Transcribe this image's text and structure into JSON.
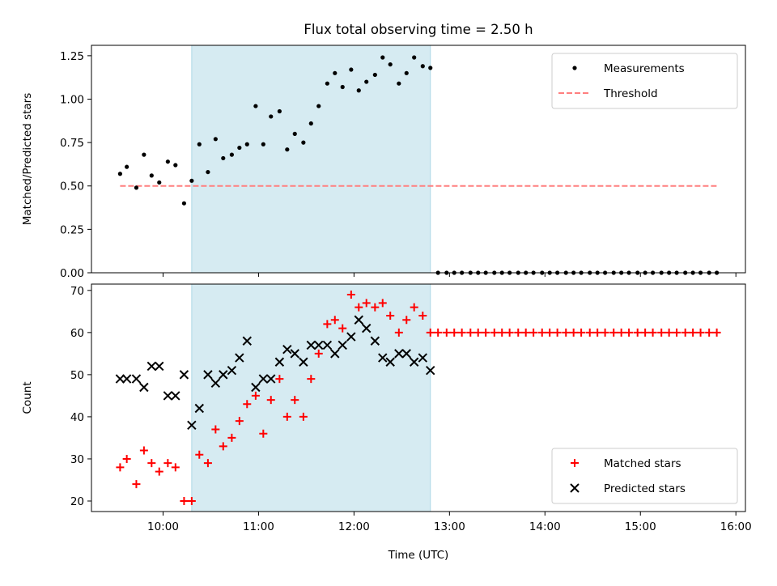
{
  "title": "Flux total observing time = 2.50 h",
  "colors": {
    "shade": "#add8e6",
    "measurement": "#000000",
    "threshold": "#ff7f7f",
    "matched": "#ff0000",
    "predicted": "#000000"
  },
  "chart_data": [
    {
      "type": "scatter",
      "panel": "top",
      "title": "Flux total observing time = 2.50 h",
      "xlabel": "",
      "ylabel": "Matched/Predicted stars",
      "xlim": [
        9.25,
        16.1
      ],
      "ylim": [
        0.0,
        1.31
      ],
      "yticks": [
        0.0,
        0.25,
        0.5,
        0.75,
        1.0,
        1.25
      ],
      "ytick_labels": [
        "0.00",
        "0.25",
        "0.50",
        "0.75",
        "1.00",
        "1.25"
      ],
      "xticks": [
        10,
        11,
        12,
        13,
        14,
        15,
        16
      ],
      "shaded_span": [
        10.3,
        12.8
      ],
      "legend": {
        "position": "top-right",
        "entries": [
          "Measurements",
          "Threshold"
        ]
      },
      "threshold": {
        "name": "Threshold",
        "y": 0.5,
        "x_start": 9.55,
        "x_end": 15.8
      },
      "series": [
        {
          "name": "Measurements",
          "x": [
            9.55,
            9.62,
            9.72,
            9.8,
            9.88,
            9.96,
            10.05,
            10.13,
            10.22,
            10.3,
            10.38,
            10.47,
            10.55,
            10.63,
            10.72,
            10.8,
            10.88,
            10.97,
            11.05,
            11.13,
            11.22,
            11.3,
            11.38,
            11.47,
            11.55,
            11.63,
            11.72,
            11.8,
            11.88,
            11.97,
            12.05,
            12.13,
            12.22,
            12.3,
            12.38,
            12.47,
            12.55,
            12.63,
            12.72,
            12.8,
            12.88,
            12.97,
            13.05,
            13.13,
            13.22,
            13.3,
            13.38,
            13.47,
            13.55,
            13.63,
            13.72,
            13.8,
            13.88,
            13.97,
            14.05,
            14.13,
            14.22,
            14.3,
            14.38,
            14.47,
            14.55,
            14.63,
            14.72,
            14.8,
            14.88,
            14.97,
            15.05,
            15.13,
            15.22,
            15.3,
            15.38,
            15.47,
            15.55,
            15.63,
            15.72,
            15.8
          ],
          "y": [
            0.57,
            0.61,
            0.49,
            0.68,
            0.56,
            0.52,
            0.64,
            0.62,
            0.4,
            0.53,
            0.74,
            0.58,
            0.77,
            0.66,
            0.68,
            0.72,
            0.74,
            0.96,
            0.74,
            0.9,
            0.93,
            0.71,
            0.8,
            0.75,
            0.86,
            0.96,
            1.09,
            1.15,
            1.07,
            1.17,
            1.05,
            1.1,
            1.14,
            1.24,
            1.2,
            1.09,
            1.15,
            1.24,
            1.19,
            1.18,
            0,
            0,
            0,
            0,
            0,
            0,
            0,
            0,
            0,
            0,
            0,
            0,
            0,
            0,
            0,
            0,
            0,
            0,
            0,
            0,
            0,
            0,
            0,
            0,
            0,
            0,
            0,
            0,
            0,
            0,
            0,
            0,
            0,
            0,
            0,
            0
          ]
        }
      ]
    },
    {
      "type": "scatter",
      "panel": "bottom",
      "xlabel": "Time (UTC)",
      "ylabel": "Count",
      "xlim": [
        9.25,
        16.1
      ],
      "ylim": [
        17.5,
        71.5
      ],
      "yticks": [
        20,
        30,
        40,
        50,
        60,
        70
      ],
      "ytick_labels": [
        "20",
        "30",
        "40",
        "50",
        "60",
        "70"
      ],
      "xticks": [
        10,
        11,
        12,
        13,
        14,
        15,
        16
      ],
      "xtick_labels": [
        "10:00",
        "11:00",
        "12:00",
        "13:00",
        "14:00",
        "15:00",
        "16:00"
      ],
      "shaded_span": [
        10.3,
        12.8
      ],
      "legend": {
        "position": "bottom-right",
        "entries": [
          "Matched stars",
          "Predicted stars"
        ]
      },
      "series": [
        {
          "name": "Matched stars",
          "marker": "+",
          "x": [
            9.55,
            9.62,
            9.72,
            9.8,
            9.88,
            9.96,
            10.05,
            10.13,
            10.22,
            10.3,
            10.38,
            10.47,
            10.55,
            10.63,
            10.72,
            10.8,
            10.88,
            10.97,
            11.05,
            11.13,
            11.22,
            11.3,
            11.38,
            11.47,
            11.55,
            11.63,
            11.72,
            11.8,
            11.88,
            11.97,
            12.05,
            12.13,
            12.22,
            12.3,
            12.38,
            12.47,
            12.55,
            12.63,
            12.72,
            12.8,
            12.88,
            12.97,
            13.05,
            13.13,
            13.22,
            13.3,
            13.38,
            13.47,
            13.55,
            13.63,
            13.72,
            13.8,
            13.88,
            13.97,
            14.05,
            14.13,
            14.22,
            14.3,
            14.38,
            14.47,
            14.55,
            14.63,
            14.72,
            14.8,
            14.88,
            14.97,
            15.05,
            15.13,
            15.22,
            15.3,
            15.38,
            15.47,
            15.55,
            15.63,
            15.72,
            15.8
          ],
          "y": [
            28,
            30,
            24,
            32,
            29,
            27,
            29,
            28,
            20,
            20,
            31,
            29,
            37,
            33,
            35,
            39,
            43,
            45,
            36,
            44,
            49,
            40,
            44,
            40,
            49,
            55,
            62,
            63,
            61,
            69,
            66,
            67,
            66,
            67,
            64,
            60,
            63,
            66,
            64,
            60,
            60,
            60,
            60,
            60,
            60,
            60,
            60,
            60,
            60,
            60,
            60,
            60,
            60,
            60,
            60,
            60,
            60,
            60,
            60,
            60,
            60,
            60,
            60,
            60,
            60,
            60,
            60,
            60,
            60,
            60,
            60,
            60,
            60,
            60,
            60,
            60
          ]
        },
        {
          "name": "Predicted stars",
          "marker": "x",
          "x": [
            9.55,
            9.62,
            9.72,
            9.8,
            9.88,
            9.96,
            10.05,
            10.13,
            10.22,
            10.3,
            10.38,
            10.47,
            10.55,
            10.63,
            10.72,
            10.8,
            10.88,
            10.97,
            11.05,
            11.13,
            11.22,
            11.3,
            11.38,
            11.47,
            11.55,
            11.63,
            11.72,
            11.8,
            11.88,
            11.97,
            12.05,
            12.13,
            12.22,
            12.3,
            12.38,
            12.47,
            12.55,
            12.63,
            12.72,
            12.8
          ],
          "y": [
            49,
            49,
            49,
            47,
            52,
            52,
            45,
            45,
            50,
            38,
            42,
            50,
            48,
            50,
            51,
            54,
            58,
            47,
            49,
            49,
            53,
            56,
            55,
            53,
            57,
            57,
            57,
            55,
            57,
            59,
            63,
            61,
            58,
            54,
            53,
            55,
            55,
            53,
            54,
            51
          ]
        }
      ]
    }
  ]
}
